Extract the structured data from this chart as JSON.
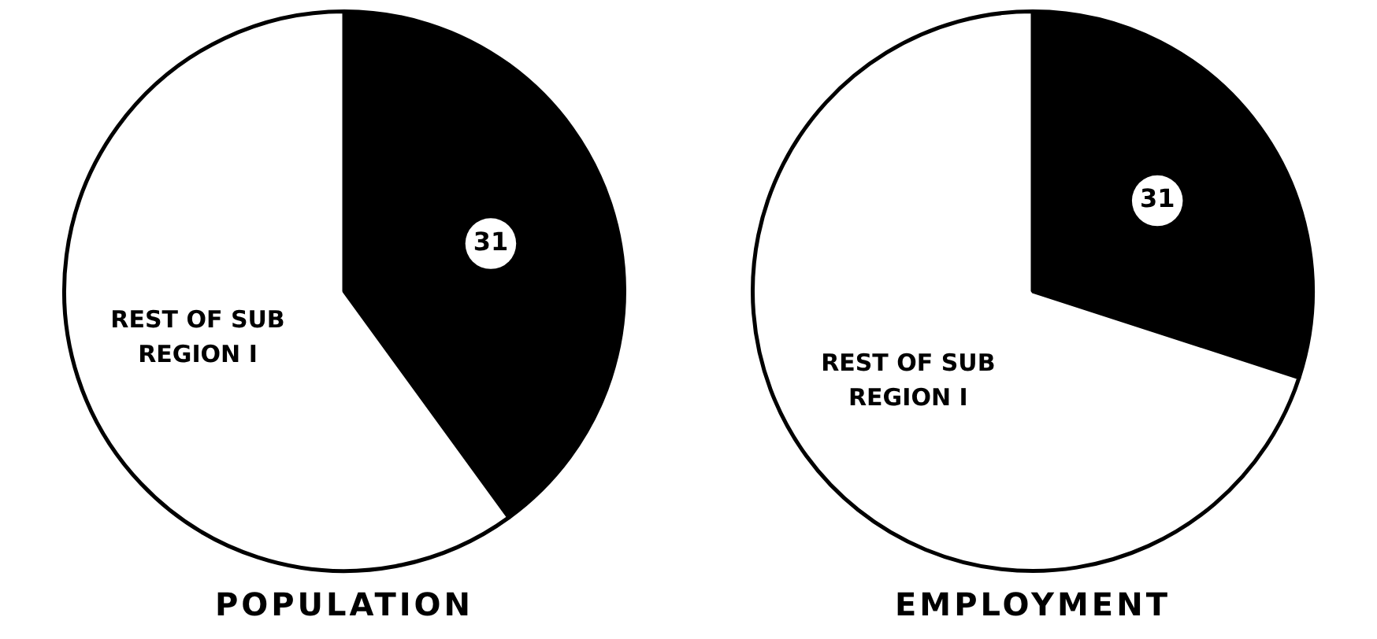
{
  "chart_data": [
    {
      "type": "pie",
      "title": "POPULATION",
      "categories": [
        "31",
        "REST OF SUB REGION I"
      ],
      "values": [
        40,
        60
      ],
      "colors": [
        "#000000",
        "#ffffff"
      ]
    },
    {
      "type": "pie",
      "title": "EMPLOYMENT",
      "categories": [
        "31",
        "REST OF SUB REGION I"
      ],
      "values": [
        30,
        70
      ],
      "colors": [
        "#000000",
        "#ffffff"
      ]
    }
  ]
}
